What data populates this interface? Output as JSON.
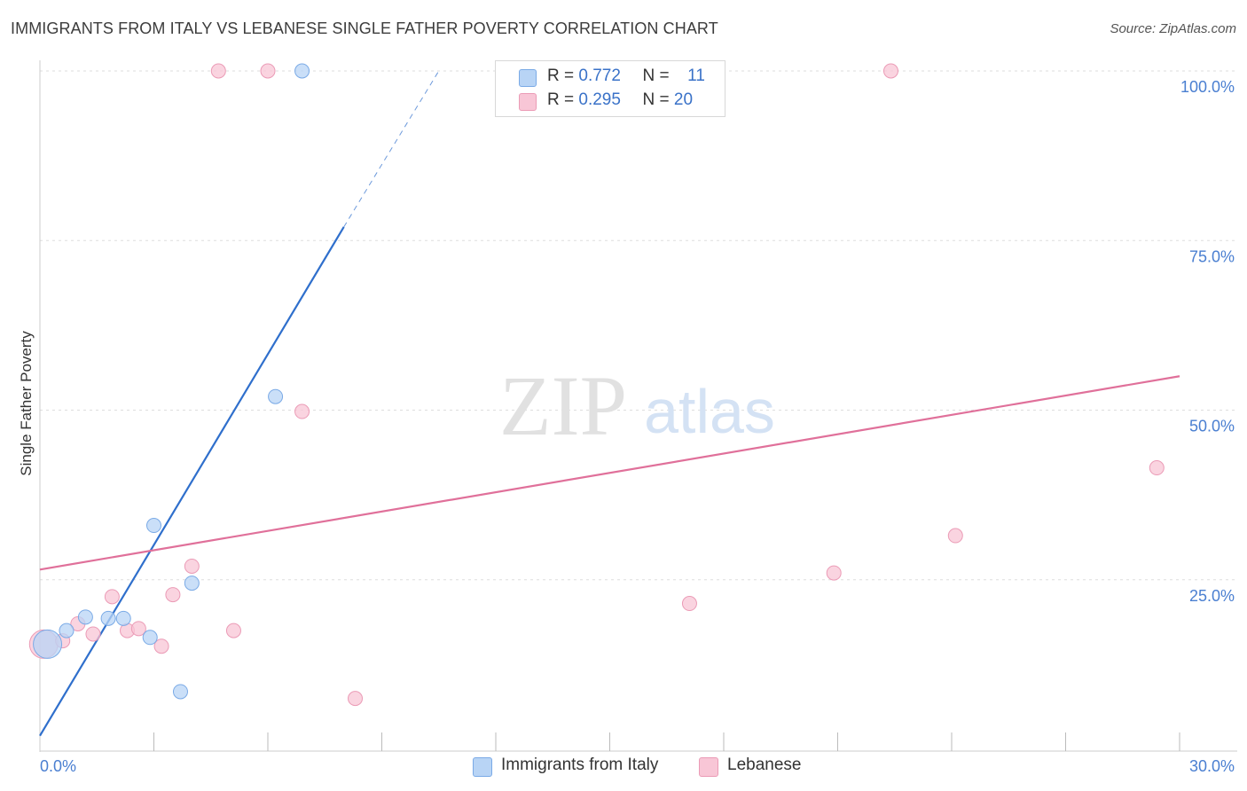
{
  "title": "IMMIGRANTS FROM ITALY VS LEBANESE SINGLE FATHER POVERTY CORRELATION CHART",
  "source": "Source: ZipAtlas.com",
  "watermark": {
    "zip": "ZIP",
    "atlas": "atlas"
  },
  "legend": {
    "rows": [
      {
        "r_label": "R =",
        "r_value": "0.772",
        "n_label": "N =",
        "n_value": "11"
      },
      {
        "r_label": "R =",
        "r_value": "0.295",
        "n_label": "N =",
        "n_value": "20"
      }
    ]
  },
  "bottom_legend": [
    "Immigrants from Italy",
    "Lebanese"
  ],
  "colors": {
    "italy_fill": "#b8d4f5",
    "italy_stroke": "#7aaae6",
    "italy_line": "#2f6fcc",
    "leb_fill": "#f8c6d6",
    "leb_stroke": "#eb9bb6",
    "leb_line": "#e0709a",
    "tick_text": "#4a7fd1",
    "grid": "#dddddd"
  },
  "chart_data": {
    "type": "scatter",
    "title": "IMMIGRANTS FROM ITALY VS LEBANESE SINGLE FATHER POVERTY CORRELATION CHART",
    "xlabel": "",
    "ylabel": "Single Father Poverty",
    "xlim": [
      0,
      30
    ],
    "ylim": [
      0,
      102
    ],
    "x_tick_labels": [
      "0.0%",
      "30.0%"
    ],
    "y_ticks": [
      25,
      50,
      75,
      100
    ],
    "y_tick_labels": [
      "25.0%",
      "50.0%",
      "75.0%",
      "100.0%"
    ],
    "grid": true,
    "series": [
      {
        "name": "Immigrants from Italy",
        "points": [
          [
            0.2,
            15.5
          ],
          [
            0.7,
            17.5
          ],
          [
            1.2,
            19.5
          ],
          [
            1.8,
            19.3
          ],
          [
            2.2,
            19.3
          ],
          [
            2.9,
            16.5
          ],
          [
            3.0,
            33.0
          ],
          [
            3.7,
            8.5
          ],
          [
            4.0,
            24.5
          ],
          [
            6.2,
            52.0
          ],
          [
            6.9,
            100.0
          ]
        ],
        "trend": {
          "x0": 0.0,
          "y0": 2.0,
          "x1": 8.0,
          "y1": 77.0,
          "dash_x1": 10.5,
          "dash_y1": 100.0
        }
      },
      {
        "name": "Lebanese",
        "points": [
          [
            0.1,
            15.5
          ],
          [
            0.6,
            16.0
          ],
          [
            1.0,
            18.5
          ],
          [
            1.4,
            17.0
          ],
          [
            1.9,
            22.5
          ],
          [
            2.3,
            17.5
          ],
          [
            2.6,
            17.8
          ],
          [
            3.2,
            15.2
          ],
          [
            3.5,
            22.8
          ],
          [
            4.0,
            27.0
          ],
          [
            5.1,
            17.5
          ],
          [
            6.0,
            100.0
          ],
          [
            6.9,
            49.8
          ],
          [
            8.3,
            7.5
          ],
          [
            4.7,
            100.0
          ],
          [
            17.1,
            21.5
          ],
          [
            20.9,
            26.0
          ],
          [
            22.4,
            100.0
          ],
          [
            24.1,
            31.5
          ],
          [
            29.4,
            41.5
          ]
        ],
        "trend": {
          "x0": 0.0,
          "y0": 26.5,
          "x1": 30.0,
          "y1": 55.0
        }
      }
    ]
  }
}
